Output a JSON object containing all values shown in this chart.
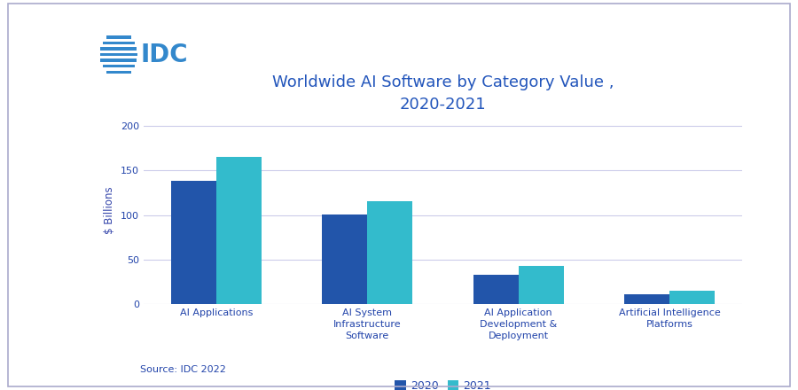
{
  "title": "Worldwide AI Software by Category Value ,\n2020-2021",
  "title_color": "#2255bb",
  "title_fontsize": 13,
  "ylabel": "$ Billions",
  "ylabel_color": "#3344aa",
  "ylabel_fontsize": 8.5,
  "categories": [
    "AI Applications",
    "AI System\nInfrastructure\nSoftware",
    "AI Application\nDevelopment &\nDeployment",
    "Artificial Intelligence\nPlatforms"
  ],
  "values_2020": [
    138,
    101,
    33,
    11
  ],
  "values_2021": [
    165,
    116,
    43,
    15
  ],
  "color_2020": "#2255aa",
  "color_2021": "#33bbcc",
  "ylim": [
    0,
    210
  ],
  "yticks": [
    0,
    50,
    100,
    150,
    200
  ],
  "grid_color": "#aaaadd",
  "grid_alpha": 0.6,
  "tick_color": "#2244aa",
  "tick_fontsize": 8,
  "xtick_fontsize": 8,
  "legend_labels": [
    "2020",
    "2021"
  ],
  "source_text": "Source: IDC 2022",
  "source_color": "#2244aa",
  "source_fontsize": 8,
  "background_color": "#ffffff",
  "bar_width": 0.3,
  "idc_logo_color": "#3388cc",
  "fig_border_color": "#aaaacc"
}
